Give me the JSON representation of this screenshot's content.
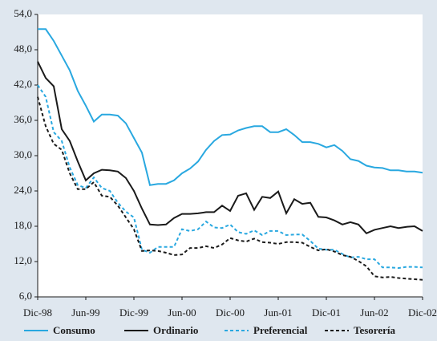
{
  "chart_data": {
    "type": "line",
    "categories": [
      "Dic-98",
      null,
      null,
      null,
      null,
      null,
      "Jun-99",
      null,
      null,
      null,
      null,
      null,
      "Dic-99",
      null,
      null,
      null,
      null,
      null,
      "Jun-00",
      null,
      null,
      null,
      null,
      null,
      "Dic-00",
      null,
      null,
      null,
      null,
      null,
      "Jun-01",
      null,
      null,
      null,
      null,
      null,
      "Dic-01",
      null,
      null,
      null,
      null,
      null,
      "Jun-02",
      null,
      null,
      null,
      null,
      null,
      "Dic-02"
    ],
    "ylim": [
      6,
      54
    ],
    "yticks": [
      {
        "value": 6,
        "label": "6,0"
      },
      {
        "value": 12,
        "label": "12,0"
      },
      {
        "value": 18,
        "label": "18,0"
      },
      {
        "value": 24,
        "label": "24,0"
      },
      {
        "value": 30,
        "label": "30,0"
      },
      {
        "value": 36,
        "label": "36,0"
      },
      {
        "value": 42,
        "label": "42,0"
      },
      {
        "value": 48,
        "label": "48,0"
      },
      {
        "value": 54,
        "label": "54,0"
      }
    ],
    "series": [
      {
        "name": "Consumo",
        "color": "#29a8e0",
        "style": "solid",
        "values": [
          51.5,
          51.5,
          49.5,
          47,
          44.5,
          41,
          38.5,
          35.8,
          37,
          37,
          36.8,
          35.5,
          33,
          30.5,
          25,
          25.2,
          25.2,
          25.8,
          27,
          27.8,
          29,
          31,
          32.5,
          33.5,
          33.6,
          34.3,
          34.7,
          35,
          35,
          34,
          34,
          34.5,
          33.5,
          32.3,
          32.3,
          32,
          31.4,
          31.8,
          30.8,
          29.4,
          29.1,
          28.3,
          28,
          27.9,
          27.5,
          27.5,
          27.3,
          27.3,
          27.1
        ]
      },
      {
        "name": "Ordinario",
        "color": "#1a1a1a",
        "style": "solid",
        "values": [
          46,
          43.2,
          41.8,
          34.5,
          32.5,
          29,
          25.8,
          27,
          27.6,
          27.5,
          27.3,
          26.2,
          24,
          21,
          18.3,
          18.2,
          18.3,
          19.4,
          20.1,
          20.1,
          20.2,
          20.4,
          20.4,
          21.5,
          20.6,
          23.2,
          23.6,
          20.8,
          23,
          22.8,
          23.9,
          20.2,
          22.6,
          21.8,
          22,
          19.6,
          19.5,
          19,
          18.3,
          18.7,
          18.3,
          16.8,
          17.4,
          17.7,
          18,
          17.7,
          17.9,
          18,
          17.2
        ]
      },
      {
        "name": "Preferencial",
        "color": "#29a8e0",
        "style": "dashed",
        "values": [
          42,
          40,
          34,
          32.5,
          28,
          25,
          24.5,
          26.3,
          24.5,
          24,
          22,
          20.5,
          19.5,
          14,
          13.5,
          14.5,
          14.5,
          14.5,
          17.5,
          17.2,
          17.5,
          18.8,
          17.8,
          17.7,
          18.3,
          17,
          16.7,
          17.3,
          16.5,
          17.2,
          17.2,
          16.5,
          16.6,
          16.6,
          15.5,
          14.2,
          14,
          14,
          13.3,
          12.7,
          12.8,
          12.4,
          12.4,
          11,
          11,
          10.9,
          11.1,
          11.1,
          11
        ]
      },
      {
        "name": "Tesorería",
        "color": "#1a1a1a",
        "style": "dashed",
        "values": [
          40,
          35,
          32,
          31,
          27,
          24.3,
          24.3,
          25.5,
          23.2,
          23,
          21.5,
          19.5,
          17.5,
          13.8,
          13.9,
          13.8,
          13.5,
          13.1,
          13.2,
          14.3,
          14.3,
          14.6,
          14.3,
          14.9,
          16,
          15.6,
          15.4,
          15.9,
          15.3,
          15.2,
          15,
          15.3,
          15.3,
          15.2,
          14.5,
          13.9,
          14.1,
          13.7,
          13.1,
          12.8,
          12.1,
          11.2,
          9.5,
          9.3,
          9.4,
          9.2,
          9.1,
          9,
          8.9
        ]
      }
    ]
  }
}
